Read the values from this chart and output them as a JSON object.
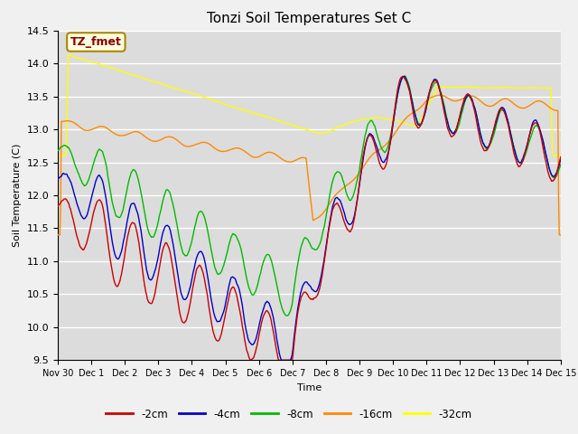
{
  "title": "Tonzi Soil Temperatures Set C",
  "xlabel": "Time",
  "ylabel": "Soil Temperature (C)",
  "ylim": [
    9.5,
    14.5
  ],
  "annotation": "TZ_fmet",
  "colors": {
    "-2cm": "#cc0000",
    "-4cm": "#0000cc",
    "-8cm": "#00bb00",
    "-16cm": "#ff8800",
    "-32cm": "#ffff00"
  },
  "legend_labels": [
    "-2cm",
    "-4cm",
    "-8cm",
    "-16cm",
    "-32cm"
  ],
  "bg_color": "#dcdcdc",
  "fig_color": "#f0f0f0",
  "n_points": 720,
  "x_tick_positions": [
    0,
    1,
    2,
    3,
    4,
    5,
    6,
    7,
    8,
    9,
    10,
    11,
    12,
    13,
    14,
    15
  ],
  "x_tick_labels": [
    "Nov 30",
    "Dec 1",
    "Dec 2",
    "Dec 3",
    "Dec 4",
    "Dec 5",
    "Dec 6",
    "Dec 7",
    "Dec 8",
    "Dec 9",
    "Dec 10",
    "Dec 11",
    "Dec 12",
    "Dec 13",
    "Dec 14",
    "Dec 15"
  ],
  "title_fontsize": 11,
  "figsize": [
    6.4,
    4.8
  ],
  "dpi": 100
}
